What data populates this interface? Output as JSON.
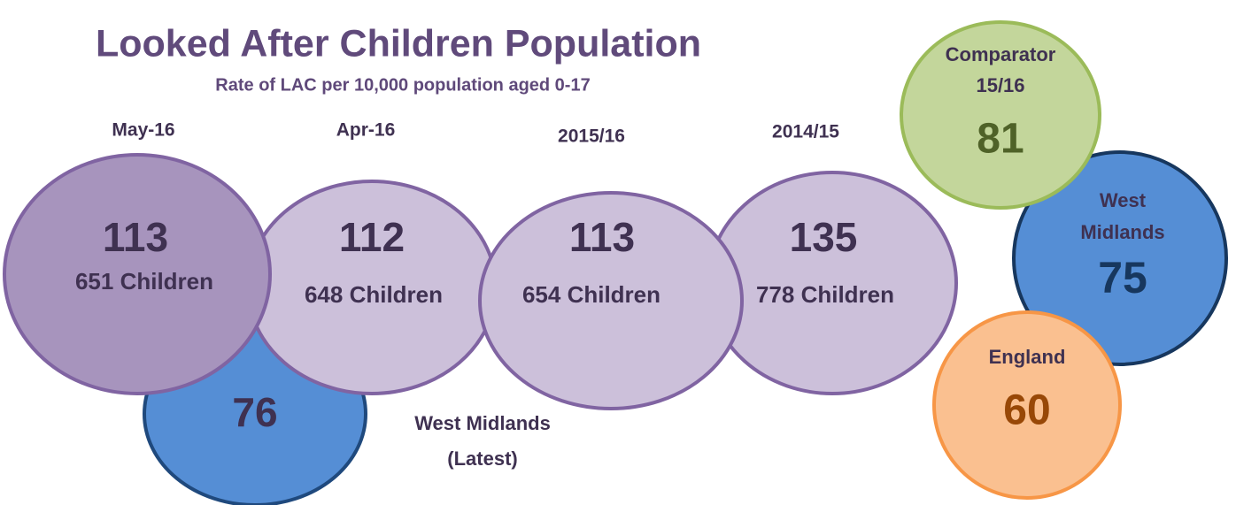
{
  "title": "Looked After Children Population",
  "subtitle": "Rate of LAC per 10,000 population aged 0-17",
  "periods": [
    {
      "label": "May-16",
      "rate": 113,
      "children": "651 Children"
    },
    {
      "label": "Apr-16",
      "rate": 112,
      "children": "648 Children"
    },
    {
      "label": "2015/16",
      "rate": 113,
      "children": "654 Children"
    },
    {
      "label": "2014/15",
      "rate": 135,
      "children": "778 Children"
    }
  ],
  "west_midlands_latest": {
    "value": 76,
    "lines": [
      "West Midlands",
      "(Latest)"
    ]
  },
  "comparators": [
    {
      "lines": [
        "Comparator",
        "15/16"
      ],
      "value": 81
    },
    {
      "lines": [
        "West",
        "Midlands"
      ],
      "value": 75
    },
    {
      "lines": [
        "England"
      ],
      "value": 60
    }
  ]
}
